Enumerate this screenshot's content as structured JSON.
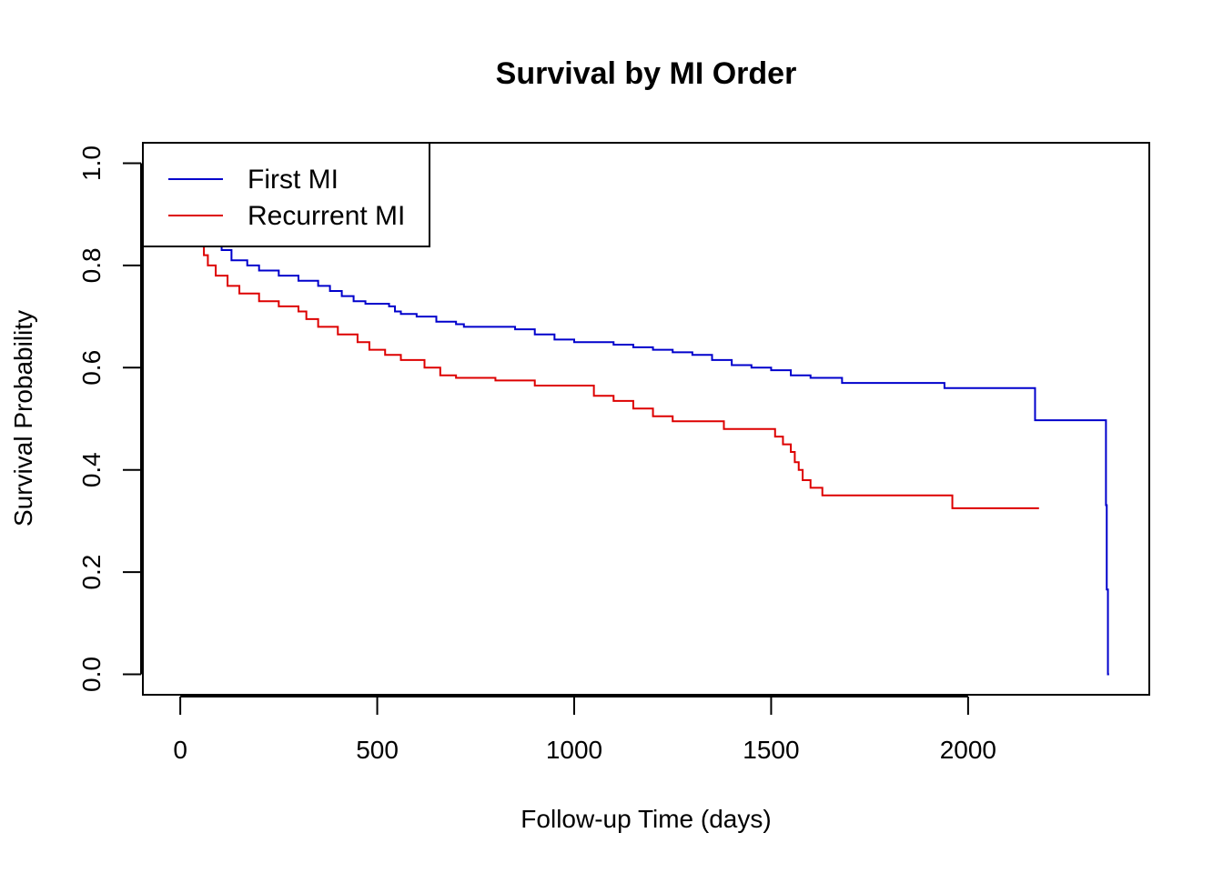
{
  "chart_data": {
    "type": "line",
    "title": "Survival by MI Order",
    "xlabel": "Follow-up Time (days)",
    "ylabel": "Survival Probability",
    "xlim": [
      -95,
      2460
    ],
    "ylim": [
      -0.04,
      1.04
    ],
    "xticks": [
      0,
      500,
      1000,
      1500,
      2000
    ],
    "yticks": [
      0.0,
      0.2,
      0.4,
      0.6,
      0.8,
      1.0
    ],
    "xtick_labels": [
      "0",
      "500",
      "1000",
      "1500",
      "2000"
    ],
    "ytick_labels": [
      "0.0",
      "0.2",
      "0.4",
      "0.6",
      "0.8",
      "1.0"
    ],
    "grid": false,
    "legend_position": "top-left",
    "series": [
      {
        "name": "First MI",
        "color": "#0000CC",
        "x": [
          0,
          30,
          60,
          90,
          105,
          130,
          170,
          200,
          250,
          300,
          350,
          380,
          410,
          440,
          470,
          530,
          545,
          560,
          600,
          650,
          700,
          720,
          850,
          900,
          950,
          1000,
          1100,
          1150,
          1200,
          1250,
          1300,
          1350,
          1400,
          1450,
          1500,
          1550,
          1600,
          1680,
          1940,
          2170,
          2350,
          2352,
          2355,
          2358
        ],
        "y": [
          1.0,
          0.96,
          0.9,
          0.85,
          0.83,
          0.81,
          0.8,
          0.79,
          0.78,
          0.77,
          0.76,
          0.75,
          0.74,
          0.73,
          0.725,
          0.72,
          0.71,
          0.705,
          0.7,
          0.69,
          0.685,
          0.68,
          0.675,
          0.665,
          0.655,
          0.65,
          0.645,
          0.64,
          0.635,
          0.63,
          0.625,
          0.615,
          0.605,
          0.6,
          0.595,
          0.585,
          0.58,
          0.57,
          0.56,
          0.497,
          0.331,
          0.166,
          0.0,
          0.0
        ]
      },
      {
        "name": "Recurrent MI",
        "color": "#DD0000",
        "x": [
          0,
          30,
          50,
          60,
          70,
          90,
          120,
          150,
          200,
          250,
          300,
          320,
          350,
          400,
          450,
          480,
          520,
          560,
          620,
          660,
          700,
          800,
          900,
          1050,
          1100,
          1150,
          1200,
          1250,
          1380,
          1510,
          1530,
          1550,
          1560,
          1570,
          1580,
          1600,
          1630,
          1960,
          2180
        ],
        "y": [
          1.0,
          0.95,
          0.88,
          0.82,
          0.8,
          0.78,
          0.76,
          0.745,
          0.73,
          0.72,
          0.71,
          0.695,
          0.68,
          0.665,
          0.65,
          0.635,
          0.625,
          0.615,
          0.6,
          0.585,
          0.58,
          0.575,
          0.565,
          0.545,
          0.535,
          0.52,
          0.505,
          0.495,
          0.48,
          0.465,
          0.45,
          0.435,
          0.415,
          0.4,
          0.38,
          0.365,
          0.35,
          0.325,
          0.325
        ]
      }
    ]
  }
}
